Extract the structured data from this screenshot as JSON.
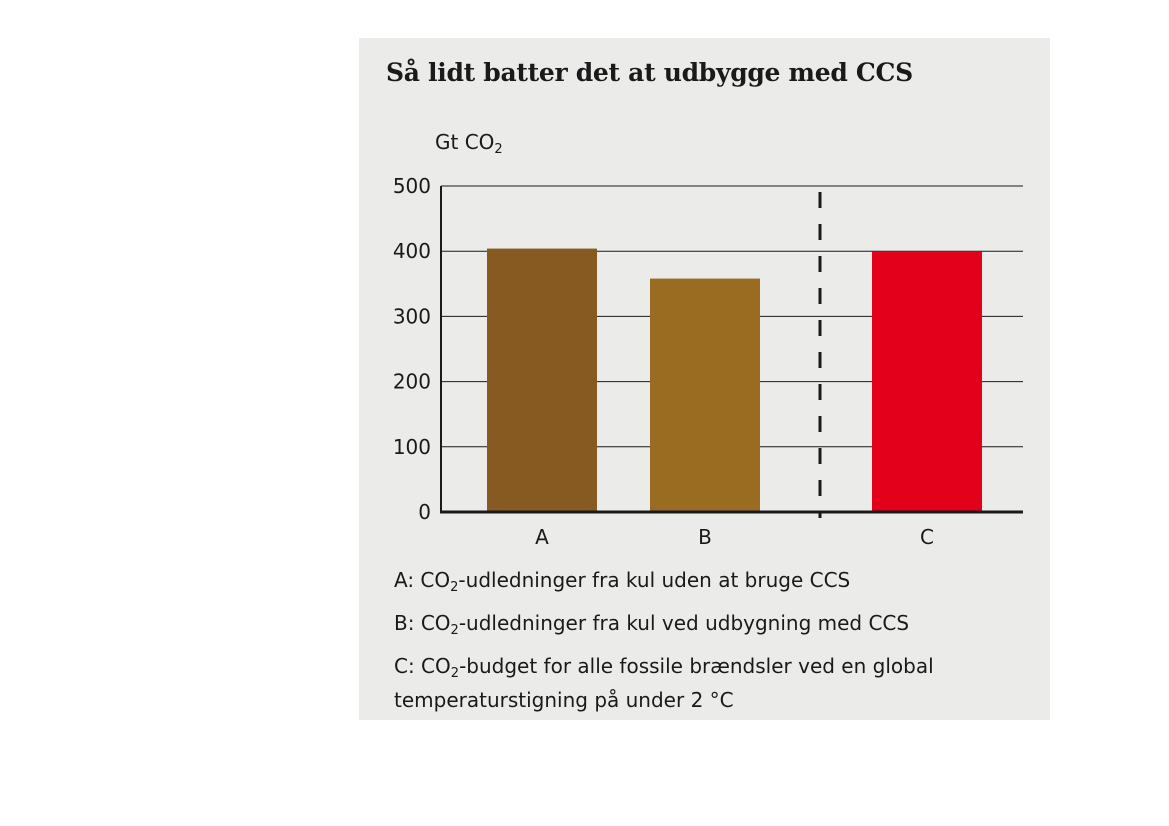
{
  "chart_data": {
    "type": "bar",
    "title": "Så lidt batter det at udbygge med CCS",
    "ylabel_prefix": "Gt CO",
    "ylabel_sub": "2",
    "ylim": [
      0,
      500
    ],
    "yticks": [
      0,
      100,
      200,
      300,
      400,
      500
    ],
    "grid": true,
    "categories": [
      "A",
      "B",
      "C"
    ],
    "values": [
      404,
      358,
      400
    ],
    "colors": [
      "#875a22",
      "#9a6c22",
      "#e3001b"
    ],
    "separator": "dashed vertical line between B and C"
  },
  "legend": [
    {
      "prefix": "A: CO",
      "sub": "2",
      "rest": "-udledninger fra kul uden at bruge CCS"
    },
    {
      "prefix": "B: CO",
      "sub": "2",
      "rest": "-udledninger fra kul ved udbygning med CCS"
    },
    {
      "prefix": "C: CO",
      "sub": "2",
      "rest": "-budget for alle fossile brændsler ved en global temperaturstigning på under 2 °C"
    }
  ]
}
